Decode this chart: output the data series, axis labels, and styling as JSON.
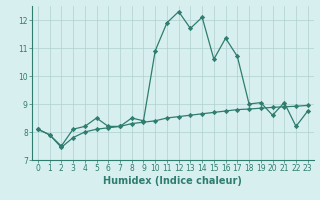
{
  "x": [
    0,
    1,
    2,
    3,
    4,
    5,
    6,
    7,
    8,
    9,
    10,
    11,
    12,
    13,
    14,
    15,
    16,
    17,
    18,
    19,
    20,
    21,
    22,
    23
  ],
  "line1": [
    8.1,
    7.9,
    7.5,
    8.1,
    8.2,
    8.5,
    8.2,
    8.2,
    8.5,
    8.4,
    10.9,
    11.9,
    12.3,
    11.7,
    12.1,
    10.6,
    11.35,
    10.7,
    9.0,
    9.05,
    8.6,
    9.05,
    8.2,
    8.75
  ],
  "line2": [
    8.1,
    7.9,
    7.45,
    7.8,
    8.0,
    8.1,
    8.15,
    8.2,
    8.3,
    8.35,
    8.4,
    8.5,
    8.55,
    8.6,
    8.65,
    8.7,
    8.75,
    8.8,
    8.82,
    8.85,
    8.88,
    8.9,
    8.92,
    8.95
  ],
  "line_color": "#2e7d6e",
  "bg_color": "#d8eff0",
  "grid_color": "#b0d0d0",
  "xlabel": "Humidex (Indice chaleur)",
  "ylim": [
    7,
    12.5
  ],
  "xlim_min": -0.5,
  "xlim_max": 23.5,
  "yticks": [
    7,
    8,
    9,
    10,
    11,
    12
  ],
  "xticks": [
    0,
    1,
    2,
    3,
    4,
    5,
    6,
    7,
    8,
    9,
    10,
    11,
    12,
    13,
    14,
    15,
    16,
    17,
    18,
    19,
    20,
    21,
    22,
    23
  ],
  "marker": "D",
  "marker_size": 2.2,
  "line_width": 0.9,
  "xlabel_fontsize": 7,
  "tick_fontsize": 5.5
}
